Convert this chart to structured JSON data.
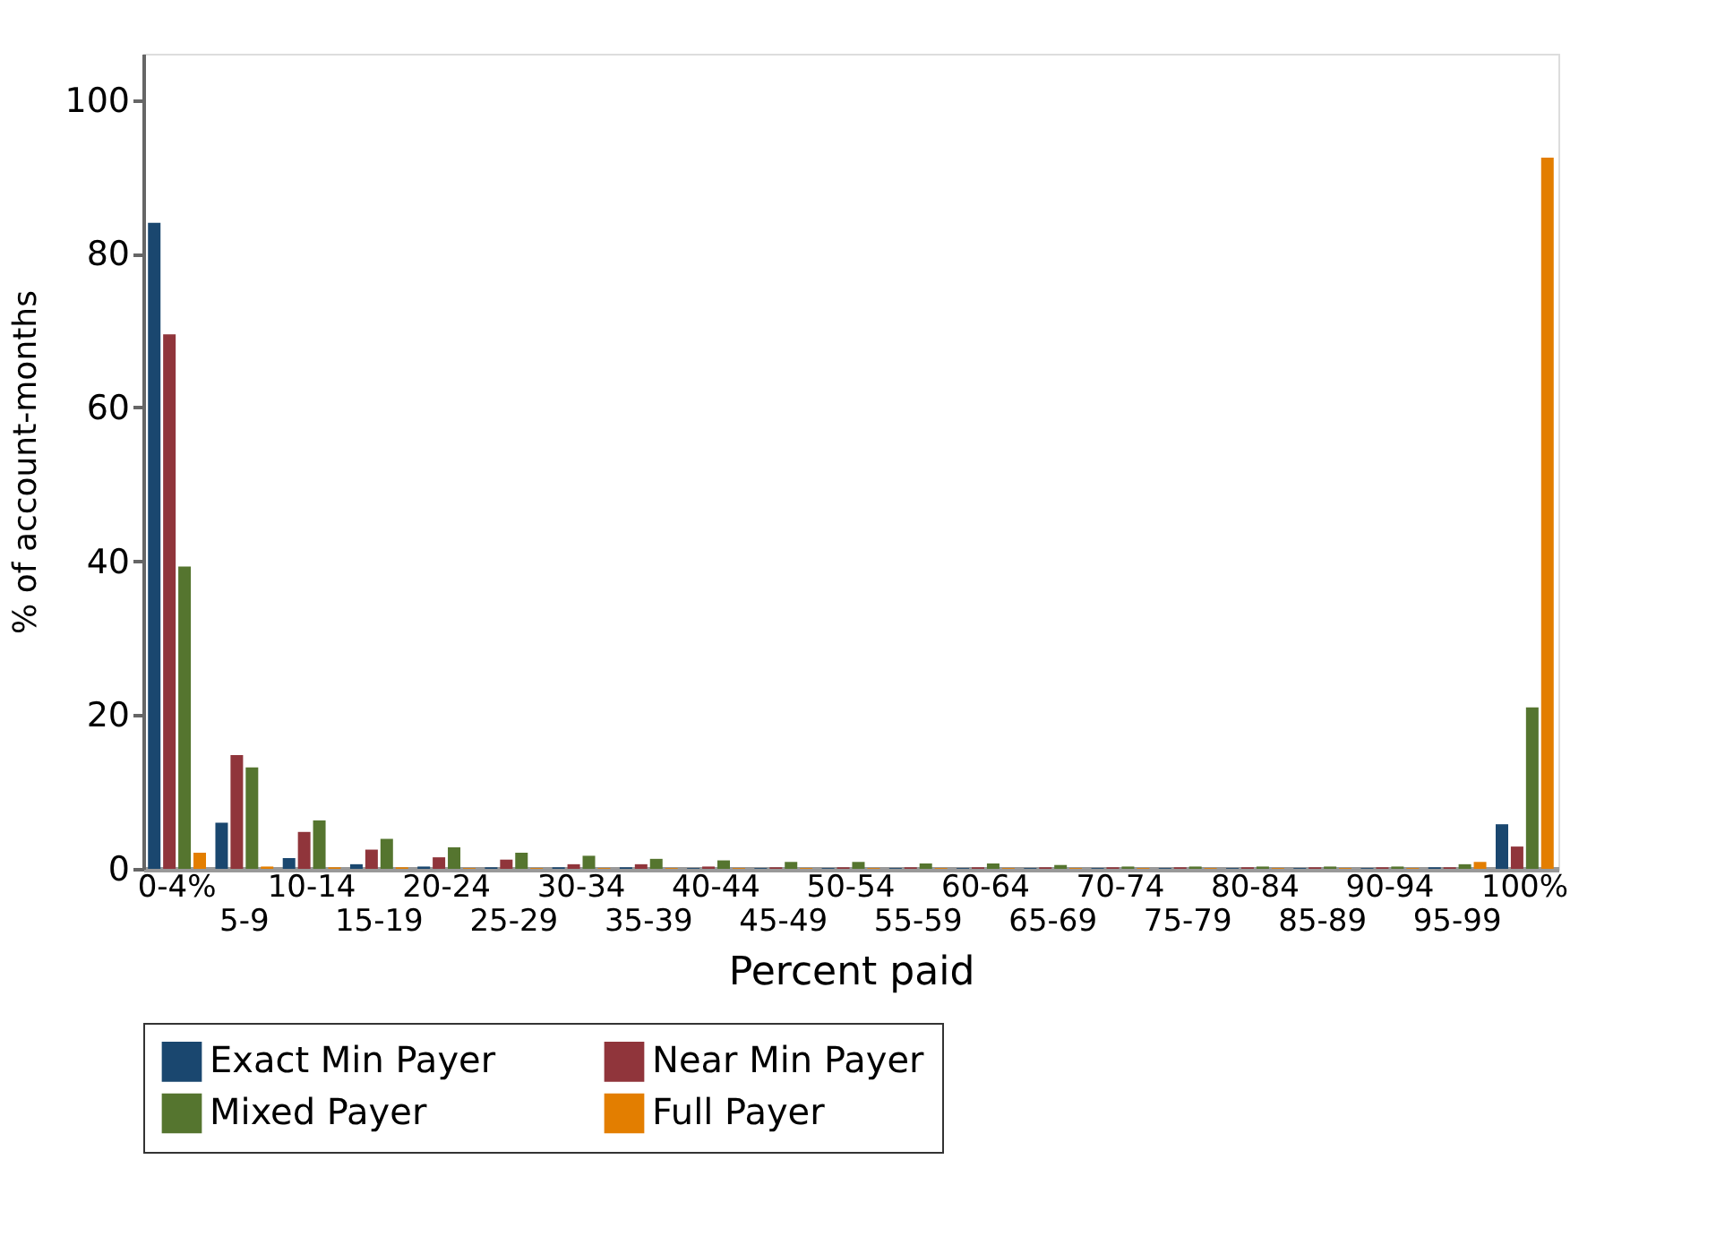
{
  "chart_data": {
    "type": "bar",
    "xlabel": "Percent paid",
    "ylabel": "% of account-months",
    "categories": [
      "0-4%",
      "5-9",
      "10-14",
      "15-19",
      "20-24",
      "25-29",
      "30-34",
      "35-39",
      "40-44",
      "45-49",
      "50-54",
      "55-59",
      "60-64",
      "65-69",
      "70-74",
      "75-79",
      "80-84",
      "85-89",
      "90-94",
      "95-99",
      "100%"
    ],
    "series": [
      {
        "name": "Exact Min Payer",
        "color": "#1a476f",
        "values": [
          84,
          6,
          1.4,
          0.6,
          0.3,
          0.2,
          0.2,
          0.2,
          0.1,
          0.1,
          0.1,
          0.1,
          0.1,
          0.1,
          0.1,
          0.1,
          0.1,
          0.1,
          0.1,
          0.2,
          5.8
        ]
      },
      {
        "name": "Near Min Payer",
        "color": "#90353b",
        "values": [
          69.5,
          14.8,
          4.8,
          2.5,
          1.5,
          1.2,
          0.6,
          0.6,
          0.3,
          0.2,
          0.2,
          0.2,
          0.2,
          0.2,
          0.2,
          0.2,
          0.2,
          0.2,
          0.2,
          0.2,
          2.9
        ]
      },
      {
        "name": "Mixed Payer",
        "color": "#55752f",
        "values": [
          39.3,
          13.2,
          6.3,
          3.9,
          2.8,
          2.1,
          1.7,
          1.3,
          1.1,
          0.9,
          0.9,
          0.7,
          0.7,
          0.5,
          0.3,
          0.3,
          0.3,
          0.3,
          0.3,
          0.6,
          21
        ]
      },
      {
        "name": "Full Payer",
        "color": "#e37e00",
        "values": [
          2.1,
          0.3,
          0.2,
          0.2,
          0.1,
          0.1,
          0.1,
          0.1,
          0.1,
          0.1,
          0.1,
          0.1,
          0.1,
          0.1,
          0.1,
          0.1,
          0.1,
          0.1,
          0.1,
          0.9,
          92.5
        ]
      }
    ],
    "ylim": [
      0,
      106
    ],
    "yticks": [
      0,
      20,
      40,
      60,
      80,
      100
    ],
    "grid": false,
    "legend": "bottom"
  }
}
